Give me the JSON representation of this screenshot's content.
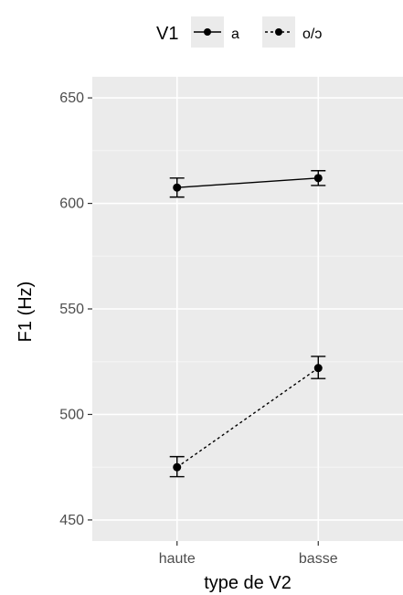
{
  "chart_data": {
    "type": "line",
    "title": "",
    "xlabel": "type de V2",
    "ylabel": "F1 (Hz)",
    "categories": [
      "haute",
      "basse"
    ],
    "ylim": [
      440,
      660
    ],
    "yticks": [
      450,
      500,
      550,
      600,
      650
    ],
    "grid": true,
    "legend": {
      "title": "V1",
      "position": "top"
    },
    "series": [
      {
        "name": "a",
        "values": [
          607.5,
          612
        ],
        "error": [
          [
            603,
            612
          ],
          [
            608.5,
            615.5
          ]
        ],
        "line": "solid"
      },
      {
        "name": "o/ɔ",
        "values": [
          475,
          522
        ],
        "error": [
          [
            470.5,
            480
          ],
          [
            517,
            527.5
          ]
        ],
        "line": "dotted"
      }
    ]
  }
}
